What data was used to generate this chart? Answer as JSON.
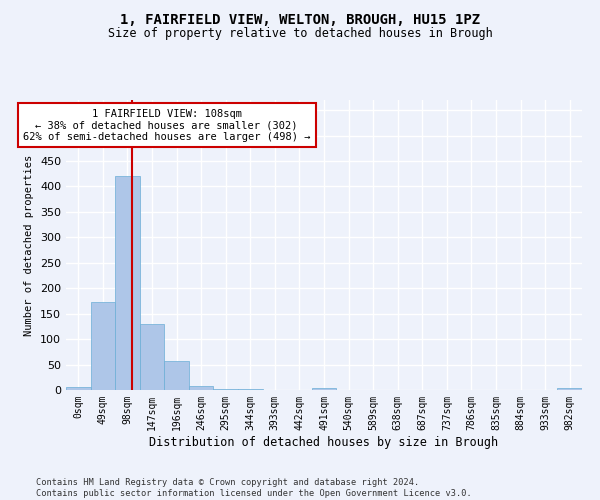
{
  "title": "1, FAIRFIELD VIEW, WELTON, BROUGH, HU15 1PZ",
  "subtitle": "Size of property relative to detached houses in Brough",
  "xlabel": "Distribution of detached houses by size in Brough",
  "ylabel": "Number of detached properties",
  "footnote": "Contains HM Land Registry data © Crown copyright and database right 2024.\nContains public sector information licensed under the Open Government Licence v3.0.",
  "bin_labels": [
    "0sqm",
    "49sqm",
    "98sqm",
    "147sqm",
    "196sqm",
    "246sqm",
    "295sqm",
    "344sqm",
    "393sqm",
    "442sqm",
    "491sqm",
    "540sqm",
    "589sqm",
    "638sqm",
    "687sqm",
    "737sqm",
    "786sqm",
    "835sqm",
    "884sqm",
    "933sqm",
    "982sqm"
  ],
  "bar_values": [
    5,
    172,
    420,
    130,
    57,
    8,
    2,
    1,
    0,
    0,
    3,
    0,
    0,
    0,
    0,
    0,
    0,
    0,
    0,
    0,
    3
  ],
  "bar_color": "#aec6e8",
  "bar_edge_color": "#6aaed6",
  "property_line_bin_index": 2.18,
  "annotation_text": "1 FAIRFIELD VIEW: 108sqm\n← 38% of detached houses are smaller (302)\n62% of semi-detached houses are larger (498) →",
  "annotation_box_color": "#ffffff",
  "annotation_box_edge": "#cc0000",
  "ylim": [
    0,
    570
  ],
  "background_color": "#eef2fb",
  "grid_color": "#ffffff",
  "title_fontsize": 10,
  "subtitle_fontsize": 8.5,
  "tick_fontsize": 7,
  "ylabel_fontsize": 7.5,
  "xlabel_fontsize": 8.5
}
